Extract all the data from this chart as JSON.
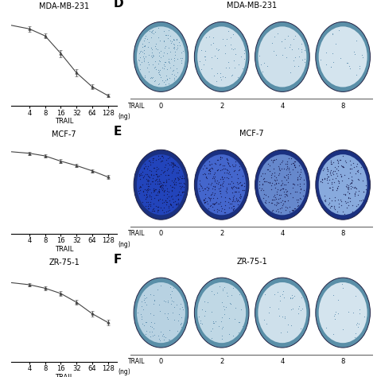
{
  "panels": [
    {
      "label": "MDA-MB-231",
      "x_vals": [
        1,
        4,
        8,
        16,
        32,
        64,
        128
      ],
      "y_vals": [
        95,
        88,
        80,
        60,
        38,
        22,
        12
      ],
      "y_err": [
        2,
        3,
        3,
        4,
        4,
        3,
        2
      ],
      "x_ticks": [
        4,
        8,
        16,
        32,
        64,
        128
      ]
    },
    {
      "label": "MCF-7",
      "x_vals": [
        1,
        4,
        8,
        16,
        32,
        64,
        128
      ],
      "y_vals": [
        95,
        92,
        89,
        83,
        78,
        72,
        65
      ],
      "y_err": [
        1,
        2,
        2,
        2,
        2,
        2,
        2
      ],
      "x_ticks": [
        4,
        8,
        16,
        32,
        64,
        128
      ]
    },
    {
      "label": "ZR-75-1",
      "x_vals": [
        1,
        4,
        8,
        16,
        32,
        64,
        128
      ],
      "y_vals": [
        92,
        88,
        84,
        78,
        68,
        55,
        45
      ],
      "y_err": [
        2,
        2,
        2,
        3,
        3,
        3,
        3
      ],
      "x_ticks": [
        4,
        8,
        16,
        32,
        64,
        128
      ]
    }
  ],
  "right_panels": [
    {
      "letter": "D",
      "title": "MDA-MB-231",
      "trail_values": [
        "0",
        "2",
        "4",
        "8"
      ],
      "outer_color": "#5a8fa8",
      "inner_colors": [
        "#c0d8e5",
        "#cee0eb",
        "#cee0eb",
        "#d4e4ee"
      ],
      "dot_densities": [
        0.55,
        0.18,
        0.12,
        0.08
      ],
      "dot_color": "#5588aa"
    },
    {
      "letter": "E",
      "title": "MCF-7",
      "trail_values": [
        "0",
        "2",
        "4",
        "8"
      ],
      "outer_color": "#1a3080",
      "inner_colors": [
        "#2244bb",
        "#4466cc",
        "#6688cc",
        "#88aadd"
      ],
      "dot_densities": [
        1.0,
        0.82,
        0.68,
        0.58
      ],
      "dot_color": "#111144"
    },
    {
      "letter": "F",
      "title": "ZR-75-1",
      "trail_values": [
        "0",
        "2",
        "4",
        "8"
      ],
      "outer_color": "#5a8fa8",
      "inner_colors": [
        "#b8d2e2",
        "#c0d8e5",
        "#cee0eb",
        "#d4e4ee"
      ],
      "dot_densities": [
        0.28,
        0.18,
        0.12,
        0.08
      ],
      "dot_color": "#5588aa"
    }
  ],
  "line_color": "#444444",
  "marker_color": "#444444",
  "bg_color": "#ffffff",
  "fontsize_title": 7,
  "fontsize_tick": 6,
  "fontsize_label": 6,
  "fontsize_letter": 11
}
